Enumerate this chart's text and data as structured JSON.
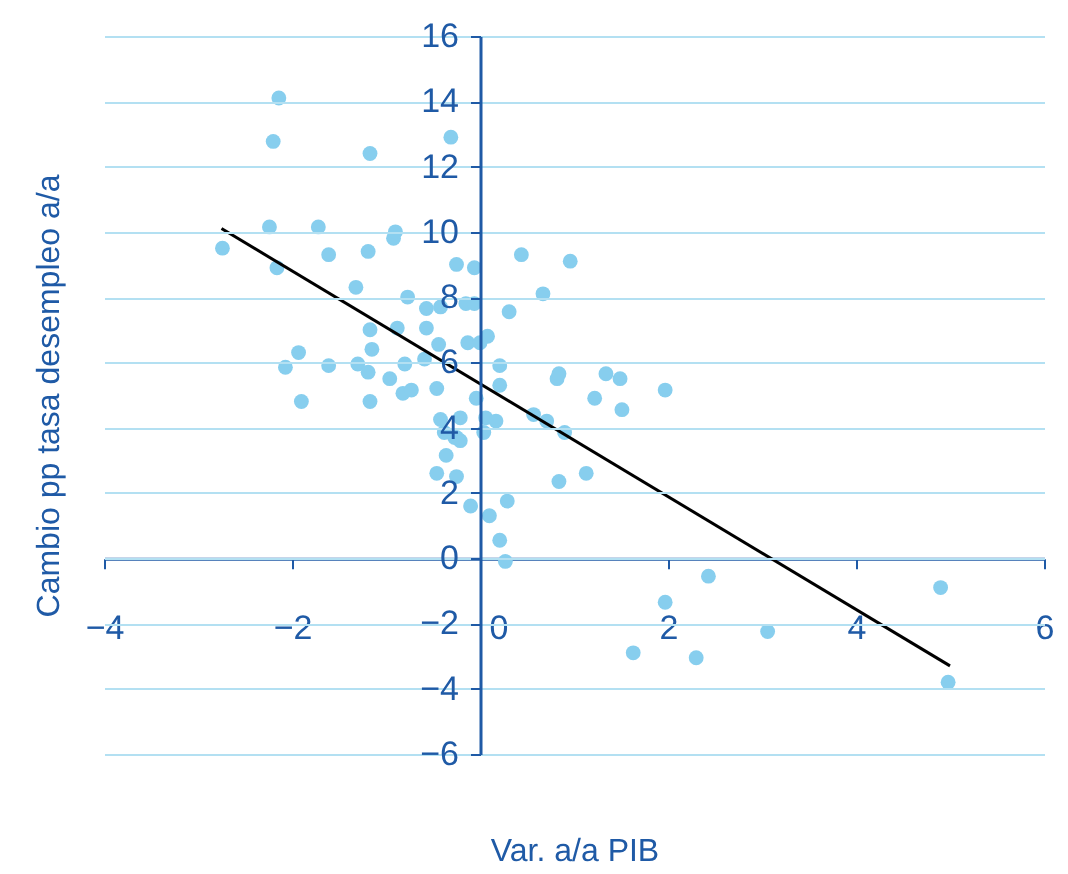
{
  "chart_data": {
    "type": "scatter",
    "xlabel": "Var. a/a PIB",
    "ylabel": "Cambio pp tasa desempleo a/a",
    "xlim": [
      -4,
      6
    ],
    "xticks": [
      -4,
      -2,
      0,
      2,
      4,
      6
    ],
    "ylim": [
      -6,
      16
    ],
    "yticks": [
      -6,
      -4,
      -2,
      0,
      2,
      4,
      6,
      8,
      10,
      12,
      14,
      16
    ],
    "grid": "y",
    "series": [
      {
        "marker": "circle",
        "color": "#87ceee",
        "x": [
          -2.14,
          -2.2,
          -1.17,
          -0.31,
          -2.24,
          -1.72,
          -2.74,
          -2.16,
          -1.61,
          -1.19,
          -0.92,
          -0.9,
          -1.32,
          -0.25,
          -0.06,
          0.44,
          0.67,
          -0.77,
          -0.42,
          -0.15,
          -0.06,
          0.31,
          0.96,
          -0.13,
          0.08,
          0.0,
          0.21,
          0.21,
          -0.04,
          0.82,
          0.84,
          1.34,
          1.49,
          1.22,
          1.51,
          1.97,
          0.57,
          0.71,
          0.9,
          -0.21,
          0.06,
          0.17,
          0.04,
          -0.25,
          1.13,
          0.84,
          -0.25,
          -0.1,
          0.29,
          0.1,
          0.21,
          0.27,
          2.43,
          -1.93,
          -2.07,
          -1.61,
          -1.9,
          -1.17,
          -1.15,
          -1.3,
          -1.19,
          -0.96,
          -1.17,
          -0.82,
          -0.73,
          -0.88,
          -0.8,
          -0.57,
          -0.44,
          -0.59,
          -0.46,
          -0.57,
          -0.42,
          -0.38,
          -0.27,
          -0.21,
          -0.36,
          -0.46,
          1.97,
          1.63,
          2.3,
          3.06,
          4.9,
          4.98
        ],
        "values": [
          14.1,
          12.77,
          12.4,
          12.9,
          10.15,
          10.15,
          9.5,
          8.9,
          9.3,
          9.4,
          9.8,
          10.0,
          8.3,
          9.0,
          8.9,
          9.3,
          8.1,
          8.0,
          7.7,
          7.8,
          7.8,
          7.55,
          9.1,
          6.6,
          6.8,
          6.6,
          5.9,
          5.3,
          4.9,
          5.5,
          5.65,
          5.65,
          5.5,
          4.9,
          4.55,
          5.15,
          4.4,
          4.2,
          3.85,
          4.3,
          4.3,
          4.2,
          3.85,
          3.7,
          2.6,
          2.35,
          2.5,
          1.6,
          1.75,
          1.3,
          0.55,
          -0.1,
          -0.55,
          6.3,
          5.85,
          5.9,
          4.8,
          7.0,
          6.4,
          5.95,
          5.7,
          5.5,
          4.8,
          5.05,
          5.15,
          7.05,
          5.95,
          7.05,
          6.55,
          6.1,
          5.2,
          7.65,
          4.25,
          3.85,
          3.7,
          3.6,
          3.15,
          2.6,
          -1.35,
          -2.9,
          -3.05,
          -2.25,
          -0.9,
          -3.8
        ]
      },
      {
        "type": "line",
        "color": "#000000",
        "x": [
          -2.75,
          5.0
        ],
        "values": [
          10.1,
          -3.3
        ]
      }
    ]
  }
}
